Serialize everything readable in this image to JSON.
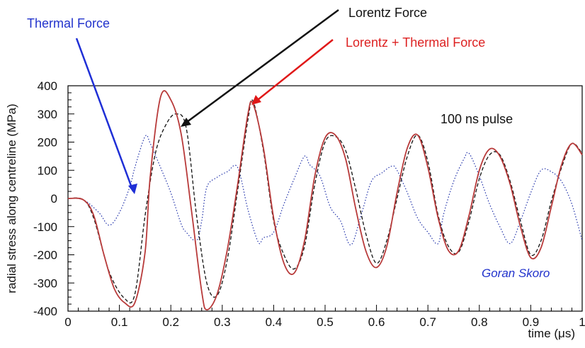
{
  "chart_data": {
    "type": "line",
    "xlabel": "time (μs)",
    "ylabel": "radial stress along centreline (MPa)",
    "xlim": [
      0,
      1
    ],
    "ylim": [
      -400,
      400
    ],
    "x_ticks": [
      "0",
      "0.1",
      "0.2",
      "0.3",
      "0.4",
      "0.5",
      "0.6",
      "0.7",
      "0.8",
      "0.9",
      "1"
    ],
    "y_ticks": [
      "-400",
      "-300",
      "-200",
      "-100",
      "0",
      "100",
      "200",
      "300",
      "400"
    ],
    "grid": false,
    "series": [
      {
        "name": "Thermal Force",
        "color": "#2233aa",
        "style": "dotted",
        "points": [
          [
            0,
            0
          ],
          [
            0.03,
            -5
          ],
          [
            0.06,
            -50
          ],
          [
            0.08,
            -95
          ],
          [
            0.1,
            -50
          ],
          [
            0.12,
            40
          ],
          [
            0.13,
            110
          ],
          [
            0.15,
            220
          ],
          [
            0.16,
            195
          ],
          [
            0.18,
            110
          ],
          [
            0.2,
            20
          ],
          [
            0.22,
            -90
          ],
          [
            0.23,
            -120
          ],
          [
            0.25,
            -150
          ],
          [
            0.26,
            -80
          ],
          [
            0.27,
            40
          ],
          [
            0.29,
            75
          ],
          [
            0.31,
            95
          ],
          [
            0.33,
            110
          ],
          [
            0.35,
            -40
          ],
          [
            0.37,
            -155
          ],
          [
            0.38,
            -140
          ],
          [
            0.4,
            -120
          ],
          [
            0.42,
            -20
          ],
          [
            0.44,
            70
          ],
          [
            0.46,
            150
          ],
          [
            0.47,
            120
          ],
          [
            0.49,
            80
          ],
          [
            0.51,
            -30
          ],
          [
            0.53,
            -80
          ],
          [
            0.55,
            -165
          ],
          [
            0.57,
            -60
          ],
          [
            0.59,
            60
          ],
          [
            0.61,
            90
          ],
          [
            0.63,
            115
          ],
          [
            0.64,
            100
          ],
          [
            0.66,
            20
          ],
          [
            0.68,
            -70
          ],
          [
            0.7,
            -120
          ],
          [
            0.72,
            -160
          ],
          [
            0.73,
            -60
          ],
          [
            0.75,
            60
          ],
          [
            0.77,
            140
          ],
          [
            0.78,
            160
          ],
          [
            0.8,
            80
          ],
          [
            0.82,
            -20
          ],
          [
            0.84,
            -100
          ],
          [
            0.86,
            -160
          ],
          [
            0.88,
            -80
          ],
          [
            0.9,
            20
          ],
          [
            0.92,
            100
          ],
          [
            0.94,
            95
          ],
          [
            0.96,
            60
          ],
          [
            0.98,
            -20
          ],
          [
            1.0,
            -150
          ]
        ]
      },
      {
        "name": "Lorentz Force",
        "color": "#111111",
        "style": "dashed",
        "points": [
          [
            0,
            0
          ],
          [
            0.03,
            -5
          ],
          [
            0.05,
            -70
          ],
          [
            0.08,
            -260
          ],
          [
            0.11,
            -355
          ],
          [
            0.13,
            -340
          ],
          [
            0.15,
            -60
          ],
          [
            0.17,
            160
          ],
          [
            0.19,
            260
          ],
          [
            0.21,
            300
          ],
          [
            0.23,
            250
          ],
          [
            0.25,
            -60
          ],
          [
            0.27,
            -300
          ],
          [
            0.29,
            -345
          ],
          [
            0.31,
            -215
          ],
          [
            0.33,
            30
          ],
          [
            0.35,
            280
          ],
          [
            0.36,
            345
          ],
          [
            0.38,
            170
          ],
          [
            0.4,
            -80
          ],
          [
            0.42,
            -200
          ],
          [
            0.44,
            -250
          ],
          [
            0.46,
            -170
          ],
          [
            0.48,
            50
          ],
          [
            0.5,
            200
          ],
          [
            0.52,
            220
          ],
          [
            0.54,
            170
          ],
          [
            0.56,
            30
          ],
          [
            0.58,
            -130
          ],
          [
            0.6,
            -230
          ],
          [
            0.62,
            -150
          ],
          [
            0.64,
            0
          ],
          [
            0.66,
            150
          ],
          [
            0.68,
            225
          ],
          [
            0.7,
            130
          ],
          [
            0.72,
            -60
          ],
          [
            0.74,
            -170
          ],
          [
            0.76,
            -190
          ],
          [
            0.78,
            -80
          ],
          [
            0.8,
            70
          ],
          [
            0.82,
            155
          ],
          [
            0.84,
            155
          ],
          [
            0.86,
            60
          ],
          [
            0.88,
            -80
          ],
          [
            0.9,
            -200
          ],
          [
            0.92,
            -150
          ],
          [
            0.94,
            -10
          ],
          [
            0.96,
            110
          ],
          [
            0.98,
            195
          ],
          [
            1.0,
            160
          ]
        ]
      },
      {
        "name": "Lorentz + Thermal Force",
        "color": "#b83a3a",
        "style": "solid",
        "points": [
          [
            0,
            0
          ],
          [
            0.03,
            -5
          ],
          [
            0.05,
            -60
          ],
          [
            0.07,
            -200
          ],
          [
            0.09,
            -320
          ],
          [
            0.11,
            -370
          ],
          [
            0.13,
            -370
          ],
          [
            0.15,
            -190
          ],
          [
            0.16,
            80
          ],
          [
            0.18,
            360
          ],
          [
            0.2,
            350
          ],
          [
            0.22,
            230
          ],
          [
            0.24,
            -40
          ],
          [
            0.26,
            -330
          ],
          [
            0.27,
            -395
          ],
          [
            0.29,
            -340
          ],
          [
            0.31,
            -180
          ],
          [
            0.33,
            50
          ],
          [
            0.35,
            300
          ],
          [
            0.36,
            335
          ],
          [
            0.38,
            180
          ],
          [
            0.4,
            -70
          ],
          [
            0.42,
            -230
          ],
          [
            0.44,
            -265
          ],
          [
            0.46,
            -150
          ],
          [
            0.48,
            80
          ],
          [
            0.5,
            215
          ],
          [
            0.52,
            225
          ],
          [
            0.54,
            140
          ],
          [
            0.56,
            -40
          ],
          [
            0.58,
            -190
          ],
          [
            0.6,
            -245
          ],
          [
            0.62,
            -170
          ],
          [
            0.64,
            20
          ],
          [
            0.66,
            180
          ],
          [
            0.68,
            225
          ],
          [
            0.7,
            110
          ],
          [
            0.72,
            -70
          ],
          [
            0.74,
            -185
          ],
          [
            0.76,
            -185
          ],
          [
            0.78,
            -60
          ],
          [
            0.8,
            100
          ],
          [
            0.82,
            175
          ],
          [
            0.84,
            150
          ],
          [
            0.86,
            50
          ],
          [
            0.88,
            -100
          ],
          [
            0.9,
            -210
          ],
          [
            0.92,
            -175
          ],
          [
            0.94,
            -30
          ],
          [
            0.96,
            120
          ],
          [
            0.98,
            195
          ],
          [
            1.0,
            155
          ]
        ]
      }
    ],
    "annotations": {
      "thermal": "Thermal Force",
      "lorentz": "Lorentz Force",
      "combined": "Lorentz + Thermal Force",
      "pulse": "100 ns pulse",
      "credit": "Goran Skoro"
    },
    "colors": {
      "thermal_text": "#2233cc",
      "lorentz_text": "#111111",
      "combined_text": "#dd2222",
      "credit_text": "#2233cc"
    }
  }
}
